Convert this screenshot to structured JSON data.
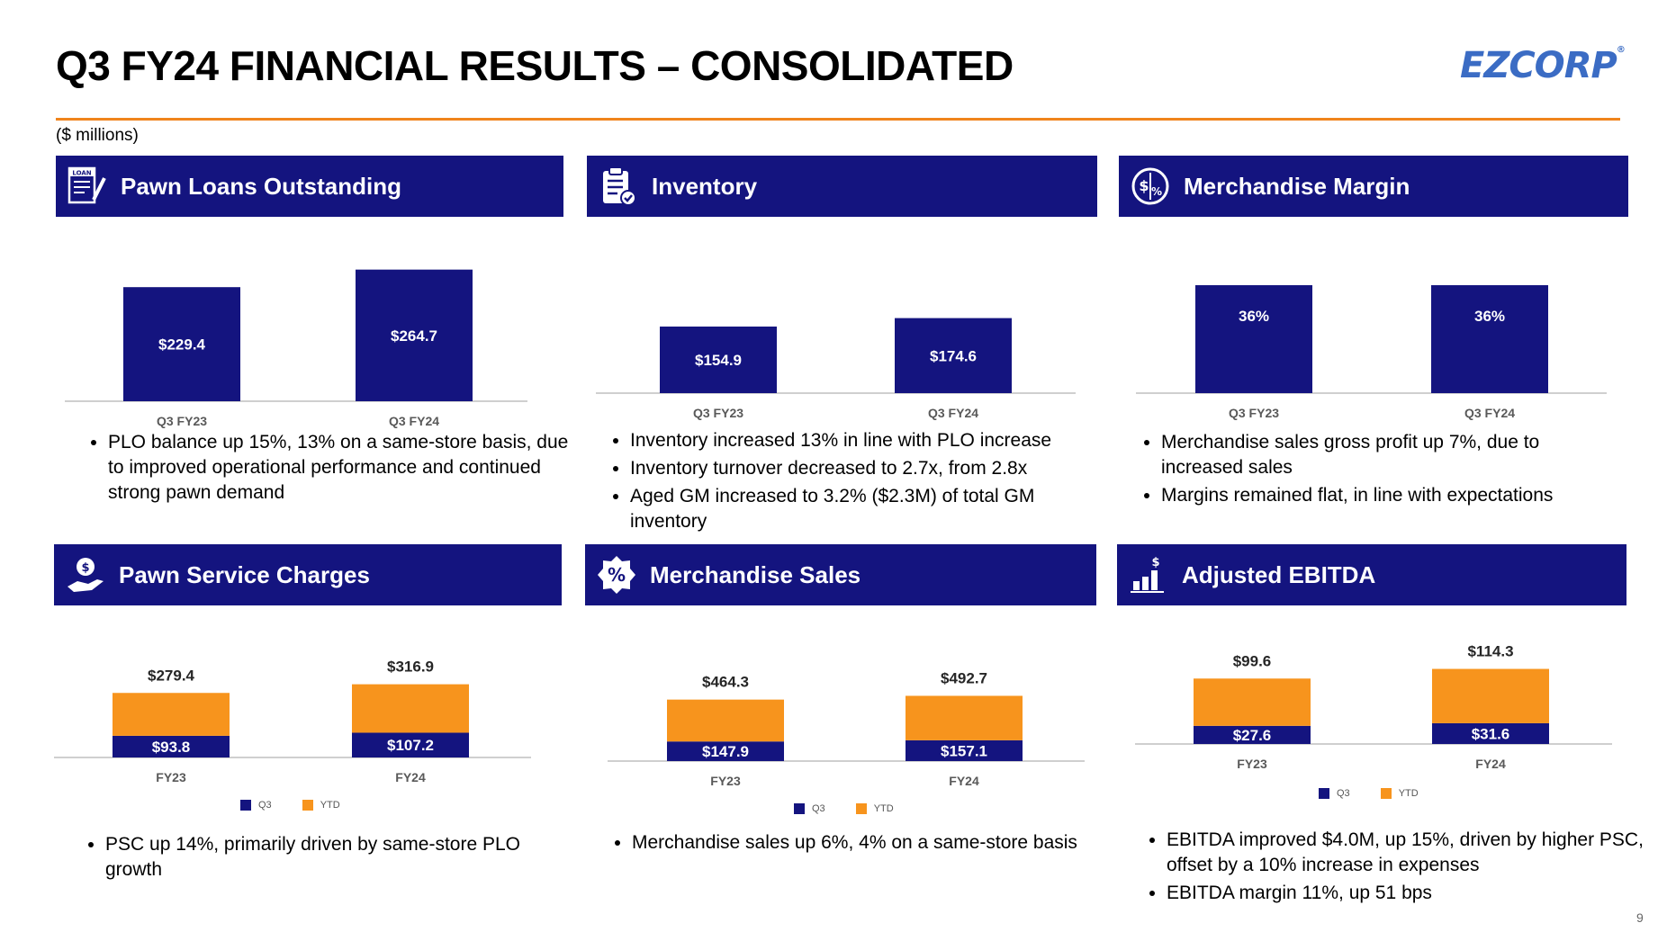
{
  "page": {
    "title": "Q3 FY24 FINANCIAL RESULTS – CONSOLIDATED",
    "logo": "EZCORP",
    "units": "($ millions)",
    "page_number": "9"
  },
  "colors": {
    "navy": "#14147f",
    "orange": "#f7941d",
    "rule": "#f0841c"
  },
  "panels": {
    "plo": {
      "title": "Pawn Loans Outstanding",
      "icon": "loan-document-icon",
      "bullets": [
        "PLO balance up 15%, 13% on a same-store basis, due to improved operational performance and continued strong pawn demand"
      ]
    },
    "inventory": {
      "title": "Inventory",
      "icon": "clipboard-checklist-icon",
      "bullets": [
        "Inventory increased 13% in line with PLO increase",
        "Inventory turnover decreased to 2.7x, from 2.8x",
        "Aged GM increased to 3.2% ($2.3M) of total GM inventory"
      ]
    },
    "margin": {
      "title": "Merchandise Margin",
      "icon": "dollar-percent-circle-icon",
      "bullets": [
        "Merchandise sales gross profit up 7%, due to increased sales",
        "Margins remained flat, in line with expectations"
      ]
    },
    "psc": {
      "title": "Pawn Service Charges",
      "icon": "hand-gear-dollar-icon",
      "bullets": [
        "PSC up 14%, primarily driven by same-store PLO growth"
      ]
    },
    "sales": {
      "title": "Merchandise Sales",
      "icon": "percent-badge-icon",
      "bullets": [
        "Merchandise sales up 6%, 4% on a same-store basis"
      ]
    },
    "ebitda": {
      "title": "Adjusted EBITDA",
      "icon": "bar-growth-dollar-icon",
      "bullets": [
        "EBITDA improved $4.0M, up 15%, driven by higher PSC, offset by a 10% increase in expenses",
        "EBITDA margin 11%, up 51 bps"
      ]
    }
  },
  "chart_data": [
    {
      "id": "plo",
      "type": "bar",
      "categories": [
        "Q3 FY23",
        "Q3 FY24"
      ],
      "values": [
        229.4,
        264.7
      ],
      "labels": [
        "$229.4",
        "$264.7"
      ],
      "ylim": [
        0,
        300
      ]
    },
    {
      "id": "inventory",
      "type": "bar",
      "categories": [
        "Q3 FY23",
        "Q3 FY24"
      ],
      "values": [
        154.9,
        174.6
      ],
      "labels": [
        "$154.9",
        "$174.6"
      ],
      "ylim": [
        0,
        225
      ]
    },
    {
      "id": "margin",
      "type": "bar",
      "categories": [
        "Q3 FY23",
        "Q3 FY24"
      ],
      "values": [
        36,
        36
      ],
      "labels": [
        "36%",
        "36%"
      ],
      "ylim": [
        0,
        39
      ]
    },
    {
      "id": "psc",
      "type": "bar",
      "stacked_display": true,
      "categories": [
        "FY23",
        "FY24"
      ],
      "series": [
        {
          "name": "Q3",
          "values": [
            93.8,
            107.2
          ],
          "labels": [
            "$93.8",
            "$107.2"
          ]
        },
        {
          "name": "YTD",
          "values": [
            279.4,
            316.9
          ],
          "labels": [
            "$279.4",
            "$316.9"
          ]
        }
      ],
      "ylim": [
        0,
        400
      ]
    },
    {
      "id": "sales",
      "type": "bar",
      "stacked_display": true,
      "categories": [
        "FY23",
        "FY24"
      ],
      "series": [
        {
          "name": "Q3",
          "values": [
            147.9,
            157.1
          ],
          "labels": [
            "$147.9",
            "$157.1"
          ]
        },
        {
          "name": "YTD",
          "values": [
            464.3,
            492.7
          ],
          "labels": [
            "$464.3",
            "$492.7"
          ]
        }
      ],
      "ylim": [
        0,
        650
      ]
    },
    {
      "id": "ebitda",
      "type": "bar",
      "stacked_display": true,
      "categories": [
        "FY23",
        "FY24"
      ],
      "series": [
        {
          "name": "Q3",
          "values": [
            27.6,
            31.6
          ],
          "labels": [
            "$27.6",
            "$31.6"
          ]
        },
        {
          "name": "YTD",
          "values": [
            99.6,
            114.3
          ],
          "labels": [
            "$99.6",
            "$114.3"
          ]
        }
      ],
      "ylim": [
        0,
        140
      ]
    }
  ]
}
